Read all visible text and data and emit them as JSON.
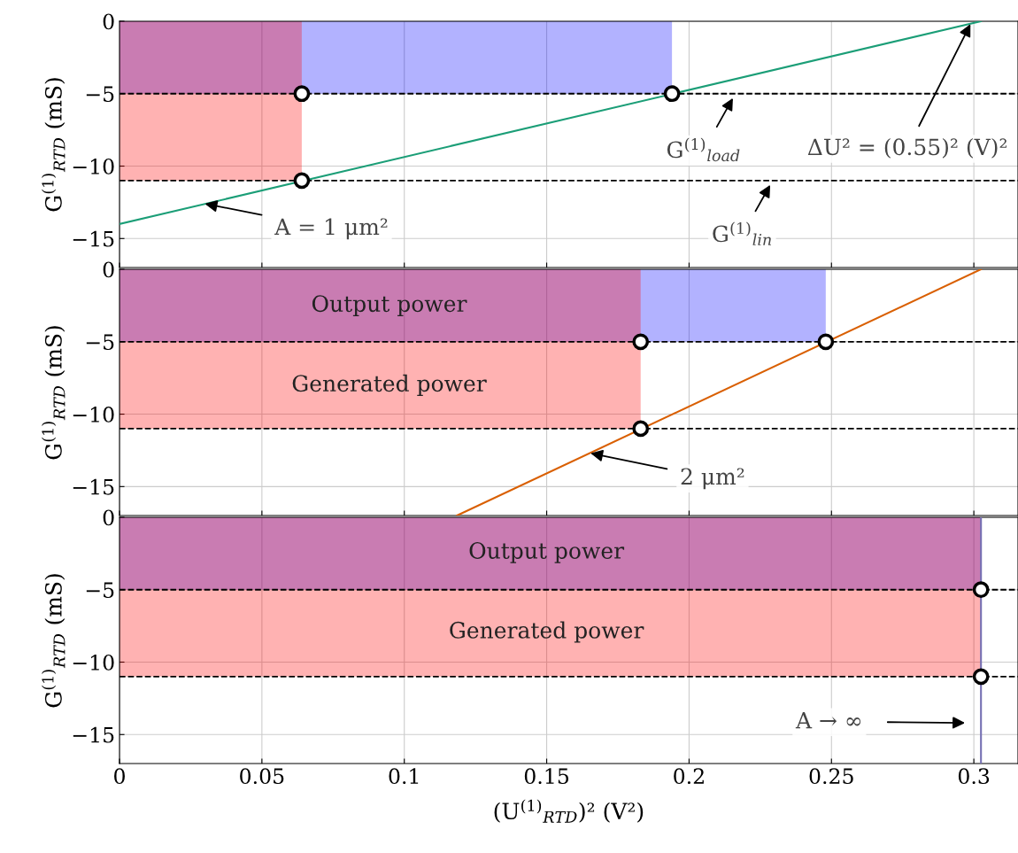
{
  "chart_data": [
    {
      "type": "line",
      "ylabel": "G$^{(1)}$$_{RTD}$ (mS)",
      "xlim": [
        0,
        0.3155
      ],
      "ylim": [
        -17,
        0
      ],
      "xticks": [
        0,
        0.05,
        0.1,
        0.15,
        0.2,
        0.25,
        0.3
      ],
      "yticks": [
        0,
        {
          "value": -5,
          "label": "−5"
        },
        {
          "value": -10,
          "label": "−10"
        },
        {
          "value": -15,
          "label": "−15"
        }
      ],
      "grid": true,
      "tick_labels": "y",
      "series": [
        {
          "type": "area",
          "color": "#0000ff",
          "x": [
            0,
            0.194
          ],
          "values": [
            -5,
            -5
          ]
        },
        {
          "type": "area",
          "color": "#ff0000",
          "x": [
            0,
            0.064
          ],
          "values": [
            -11,
            -11
          ]
        },
        {
          "color": "#1b9e77",
          "x": [
            0,
            0.3025
          ],
          "values": [
            -14,
            0
          ]
        },
        {
          "type": "scatter",
          "color": "#000000",
          "marker": "circle",
          "x": [
            0.064,
            0.064,
            0.194
          ],
          "values": [
            -5,
            -11,
            -5
          ]
        }
      ],
      "ref_lines": [
        {
          "axis": "y",
          "value": -5,
          "color": "#000000",
          "line_style": "dashed"
        },
        {
          "axis": "y",
          "value": -11,
          "color": "#000000",
          "line_style": "dashed"
        }
      ],
      "annotations": [
        {
          "text": "A = 1 μm²",
          "x": 0.03,
          "y": -12.6
        },
        {
          "text": "G$^{(1)}$$_{load}$",
          "x": 0.2154,
          "y": -5.3
        },
        {
          "text": "ΔU² = (0.55)² (V)²",
          "x": 0.2988,
          "y": -0.2
        },
        {
          "text": "G$^{(1)}$$_{lin}$",
          "x": 0.2285,
          "y": -11.3
        }
      ]
    },
    {
      "type": "line",
      "ylabel": "G$^{(1)}$$_{RTD}$ (mS)",
      "xlim": [
        0,
        0.3155
      ],
      "ylim": [
        -17,
        0
      ],
      "xticks": [
        0,
        0.05,
        0.1,
        0.15,
        0.2,
        0.25,
        0.3
      ],
      "yticks": [
        0,
        {
          "value": -5,
          "label": "−5"
        },
        {
          "value": -10,
          "label": "−10"
        },
        {
          "value": -15,
          "label": "−15"
        }
      ],
      "grid": true,
      "tick_labels": "y",
      "series": [
        {
          "type": "area",
          "color": "#0000ff",
          "x": [
            0,
            0.248
          ],
          "values": [
            -5,
            -5
          ]
        },
        {
          "type": "area",
          "color": "#ff0000",
          "x": [
            0,
            0.183
          ],
          "values": [
            -11,
            -11
          ]
        },
        {
          "color": "#d95f02",
          "x": [
            0.1185,
            0.3025
          ],
          "values": [
            -17,
            0
          ]
        },
        {
          "type": "scatter",
          "color": "#000000",
          "marker": "circle",
          "x": [
            0.183,
            0.183,
            0.248
          ],
          "values": [
            -5,
            -11,
            -5
          ]
        }
      ],
      "ref_lines": [
        {
          "axis": "y",
          "value": -5,
          "color": "#000000",
          "line_style": "dashed"
        },
        {
          "axis": "y",
          "value": -11,
          "color": "#000000",
          "line_style": "dashed"
        }
      ],
      "annotations": [
        "Output power",
        "Generated power",
        {
          "text": "2 μm²",
          "x": 0.1654,
          "y": -12.7
        }
      ]
    },
    {
      "type": "line",
      "ylabel": "G$^{(1)}$$_{RTD}$ (mS)",
      "xlabel": "(U$^{(1)}$$_{RTD}$)² (V²)",
      "xlim": [
        0,
        0.3155
      ],
      "ylim": [
        -17,
        0
      ],
      "xticks": [
        0,
        0.05,
        0.1,
        0.15,
        0.2,
        0.25,
        0.3
      ],
      "yticks": [
        0,
        {
          "value": -5,
          "label": "−5"
        },
        {
          "value": -10,
          "label": "−10"
        },
        {
          "value": -15,
          "label": "−15"
        }
      ],
      "grid": true,
      "series": [
        {
          "type": "area",
          "color": "#0000ff",
          "x": [
            0,
            0.3025
          ],
          "values": [
            -5,
            -5
          ]
        },
        {
          "type": "area",
          "color": "#ff0000",
          "x": [
            0,
            0.3025
          ],
          "values": [
            -11,
            -11
          ]
        },
        {
          "color": "#7570b3",
          "x": [
            0.3025,
            0.3025
          ],
          "values": [
            0,
            -17
          ]
        },
        {
          "type": "scatter",
          "color": "#000000",
          "marker": "circle",
          "x": [
            0.3025,
            0.3025
          ],
          "values": [
            -5,
            -11
          ]
        }
      ],
      "ref_lines": [
        {
          "axis": "y",
          "value": -5,
          "color": "#000000",
          "line_style": "dashed"
        },
        {
          "axis": "y",
          "value": -11,
          "color": "#000000",
          "line_style": "dashed"
        }
      ],
      "annotations": [
        "Output power",
        "Generated power",
        "A → ∞"
      ]
    }
  ]
}
